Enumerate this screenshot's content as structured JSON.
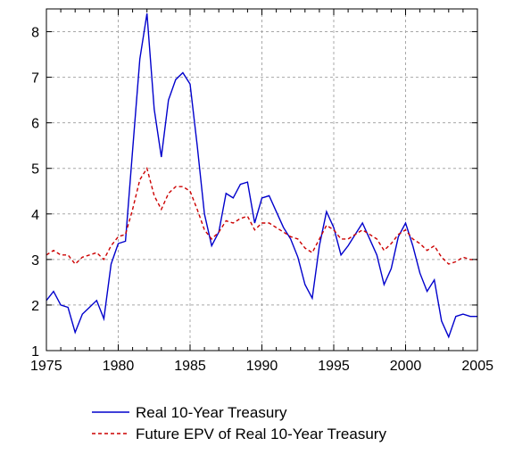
{
  "chart_data": {
    "type": "line",
    "x_ticks": [
      "1975",
      "1980",
      "1985",
      "1990",
      "1995",
      "2000",
      "2005"
    ],
    "y_ticks": [
      "1",
      "2",
      "3",
      "4",
      "5",
      "6",
      "7",
      "8"
    ],
    "xlim": [
      1975,
      2005
    ],
    "ylim": [
      1,
      8.5
    ],
    "grid": true,
    "legend_position": "bottom",
    "series": [
      {
        "name": "Real 10-Year Treasury",
        "color": "#0000cc",
        "style": "solid",
        "x": [
          1975,
          1975.5,
          1976,
          1976.5,
          1977,
          1977.5,
          1978,
          1978.5,
          1979,
          1979.5,
          1980,
          1980.5,
          1981,
          1981.5,
          1982,
          1982.5,
          1983,
          1983.5,
          1984,
          1984.5,
          1985,
          1985.5,
          1986,
          1986.5,
          1987,
          1987.5,
          1988,
          1988.5,
          1989,
          1989.5,
          1990,
          1990.5,
          1991,
          1991.5,
          1992,
          1992.5,
          1993,
          1993.5,
          1994,
          1994.5,
          1995,
          1995.5,
          1996,
          1996.5,
          1997,
          1997.5,
          1998,
          1998.5,
          1999,
          1999.5,
          2000,
          2000.5,
          2001,
          2001.5,
          2002,
          2002.5,
          2003,
          2003.5,
          2004,
          2004.5,
          2005
        ],
        "y": [
          2.1,
          2.3,
          2.0,
          1.95,
          1.4,
          1.8,
          1.95,
          2.1,
          1.7,
          2.9,
          3.35,
          3.4,
          5.4,
          7.4,
          8.4,
          6.3,
          5.25,
          6.5,
          6.95,
          7.1,
          6.85,
          5.5,
          4.0,
          3.3,
          3.6,
          4.45,
          4.35,
          4.65,
          4.7,
          3.8,
          4.35,
          4.4,
          4.05,
          3.7,
          3.45,
          3.05,
          2.45,
          2.15,
          3.3,
          4.05,
          3.7,
          3.1,
          3.3,
          3.55,
          3.8,
          3.45,
          3.1,
          2.45,
          2.8,
          3.5,
          3.8,
          3.3,
          2.7,
          2.3,
          2.55,
          1.65,
          1.3,
          1.75,
          1.8,
          1.75,
          1.75
        ]
      },
      {
        "name": "Future EPV of Real 10-Year Treasury",
        "color": "#cc0000",
        "style": "dashed",
        "x": [
          1975,
          1975.5,
          1976,
          1976.5,
          1977,
          1977.5,
          1978,
          1978.5,
          1979,
          1979.5,
          1980,
          1980.5,
          1981,
          1981.5,
          1982,
          1982.5,
          1983,
          1983.5,
          1984,
          1984.5,
          1985,
          1985.5,
          1986,
          1986.5,
          1987,
          1987.5,
          1988,
          1988.5,
          1989,
          1989.5,
          1990,
          1990.5,
          1991,
          1991.5,
          1992,
          1992.5,
          1993,
          1993.5,
          1994,
          1994.5,
          1995,
          1995.5,
          1996,
          1996.5,
          1997,
          1997.5,
          1998,
          1998.5,
          1999,
          1999.5,
          2000,
          2000.5,
          2001,
          2001.5,
          2002,
          2002.5,
          2003,
          2003.5,
          2004,
          2004.5,
          2005
        ],
        "y": [
          3.1,
          3.2,
          3.1,
          3.1,
          2.9,
          3.05,
          3.1,
          3.15,
          3.0,
          3.3,
          3.5,
          3.55,
          4.1,
          4.75,
          5.0,
          4.4,
          4.1,
          4.45,
          4.6,
          4.6,
          4.5,
          4.1,
          3.65,
          3.45,
          3.6,
          3.85,
          3.8,
          3.9,
          3.95,
          3.65,
          3.8,
          3.8,
          3.7,
          3.6,
          3.5,
          3.45,
          3.25,
          3.15,
          3.45,
          3.75,
          3.65,
          3.45,
          3.45,
          3.55,
          3.65,
          3.55,
          3.45,
          3.2,
          3.35,
          3.55,
          3.65,
          3.45,
          3.35,
          3.2,
          3.3,
          3.05,
          2.9,
          2.95,
          3.05,
          3.0,
          3.0
        ]
      }
    ]
  }
}
